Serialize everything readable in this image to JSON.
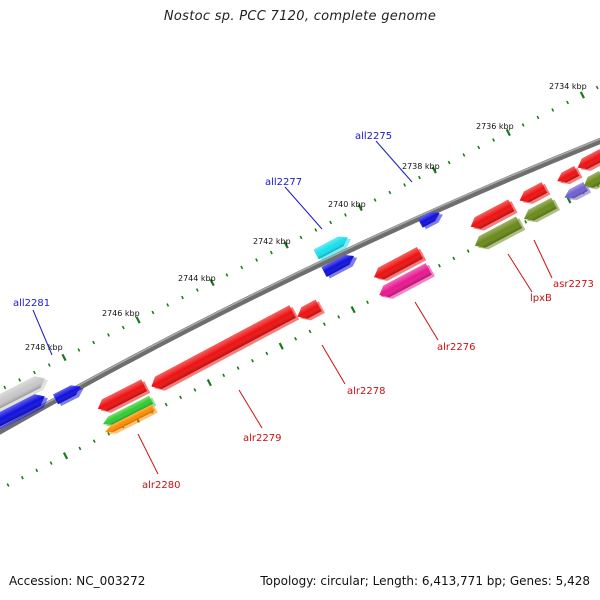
{
  "title": "Nostoc sp. PCC 7120, complete genome",
  "footer": {
    "accession": "Accession: NC_003272",
    "summary": "Topology: circular; Length: 6,413,771 bp; Genes: 5,428"
  },
  "scale_labels": [
    "2734 kbp",
    "2736 kbp",
    "2738 kbp",
    "2740 kbp",
    "2742 kbp",
    "2744 kbp",
    "2746 kbp",
    "2748 kbp"
  ],
  "gene_labels_forward_strand": [
    "all2275",
    "all2277",
    "all2281"
  ],
  "gene_labels_reverse_strand": [
    "asr2273",
    "lpxB",
    "alr2276",
    "alr2278",
    "alr2279",
    "alr2280"
  ],
  "colors": {
    "backbone": "#7a7a7a",
    "tick": "#1a7a1a",
    "label_forward": "#1a1acc",
    "label_reverse": "#cc1010",
    "red": "#ee1111",
    "blue": "#1010e0",
    "cyan": "#18e0ee",
    "magenta": "#e81890",
    "olive": "#6a8a1a",
    "green": "#30cc30",
    "orange": "#ff8c00",
    "gray": "#c8c8c8",
    "violet": "#7060d0"
  }
}
